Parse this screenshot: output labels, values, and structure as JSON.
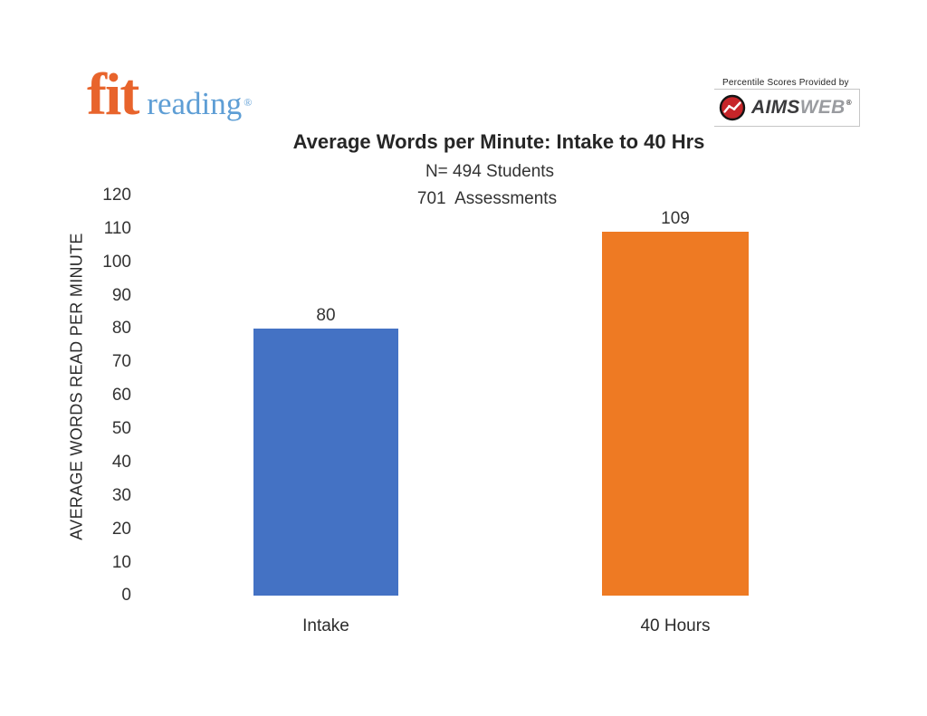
{
  "logo_fit": {
    "word1": "fit",
    "word2": "reading",
    "registered": "®",
    "orange": "#E8642C",
    "blue": "#5E9ED5"
  },
  "provider": {
    "caption": "Percentile Scores Provided by",
    "brand_aims": "AIMS",
    "brand_web": "WEB",
    "registered": "®",
    "icon": "line-chart-in-red-circle",
    "red": "#C62529",
    "dark_text": "#3A3A3C",
    "gray_text": "#9A9CA0"
  },
  "chart_data": {
    "type": "bar",
    "title": "Average Words per Minute: Intake to 40 Hrs",
    "subtitle_lines": [
      "N= 494 Students",
      "701  Assessments"
    ],
    "categories": [
      "Intake",
      "40 Hours"
    ],
    "values": [
      80,
      109
    ],
    "data_labels": [
      "80",
      "109"
    ],
    "xlabel": "",
    "ylabel": "AVERAGE WORDS READ PER MINUTE",
    "ylim": [
      0,
      120
    ],
    "ytick_step": 10,
    "yticks": [
      "120",
      "110",
      "100",
      "90",
      "80",
      "70",
      "60",
      "50",
      "40",
      "30",
      "20",
      "10",
      "0"
    ],
    "grid": false,
    "legend": false,
    "bar_colors": [
      "#4472C4",
      "#EE7A23"
    ],
    "text_color": "#333333",
    "background": "#FFFFFF"
  }
}
